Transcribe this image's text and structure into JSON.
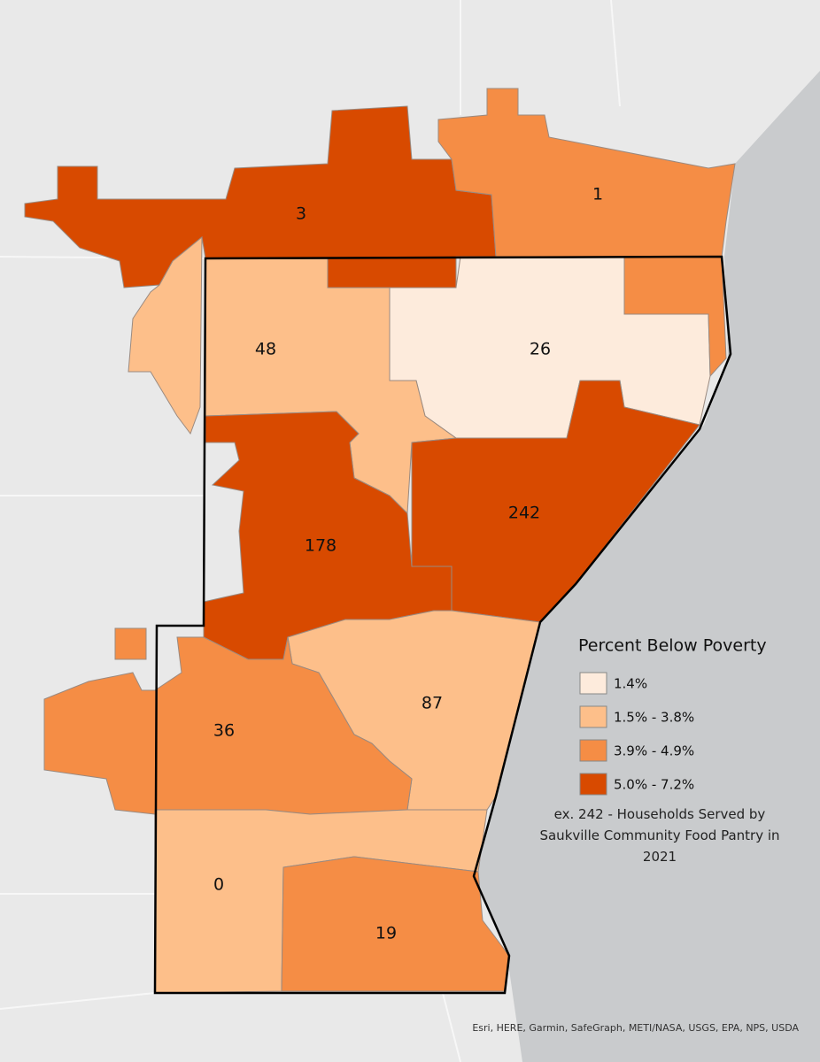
{
  "map": {
    "regions": [
      {
        "label": 3,
        "color": "#d84a00"
      },
      {
        "label": 1,
        "color": "#f58d45"
      },
      {
        "label": 48,
        "color": "#fdbf8a"
      },
      {
        "label": 26,
        "color": "#fdebdc"
      },
      {
        "label": 178,
        "color": "#d84a00"
      },
      {
        "label": 242,
        "color": "#d84a00"
      },
      {
        "label": 87,
        "color": "#fdbf8a"
      },
      {
        "label": 36,
        "color": "#f58d45"
      },
      {
        "label": 0,
        "color": "#fdbf8a"
      },
      {
        "label": 19,
        "color": "#f58d45"
      }
    ],
    "legend": {
      "title": "Percent Below Poverty",
      "items": [
        {
          "label": "1.4%",
          "color": "#fdebdc"
        },
        {
          "label": "1.5% - 3.8%",
          "color": "#fdbf8a"
        },
        {
          "label": "3.9% - 4.9%",
          "color": "#f58d45"
        },
        {
          "label": "5.0% - 7.2%",
          "color": "#d84a00"
        }
      ]
    },
    "note": "ex. 242 - Households Served by Saukville Community Food Pantry in 2021",
    "attribution": "Esri, HERE, Garmin, SafeGraph, METI/NASA, USGS, EPA, NPS, USDA"
  }
}
